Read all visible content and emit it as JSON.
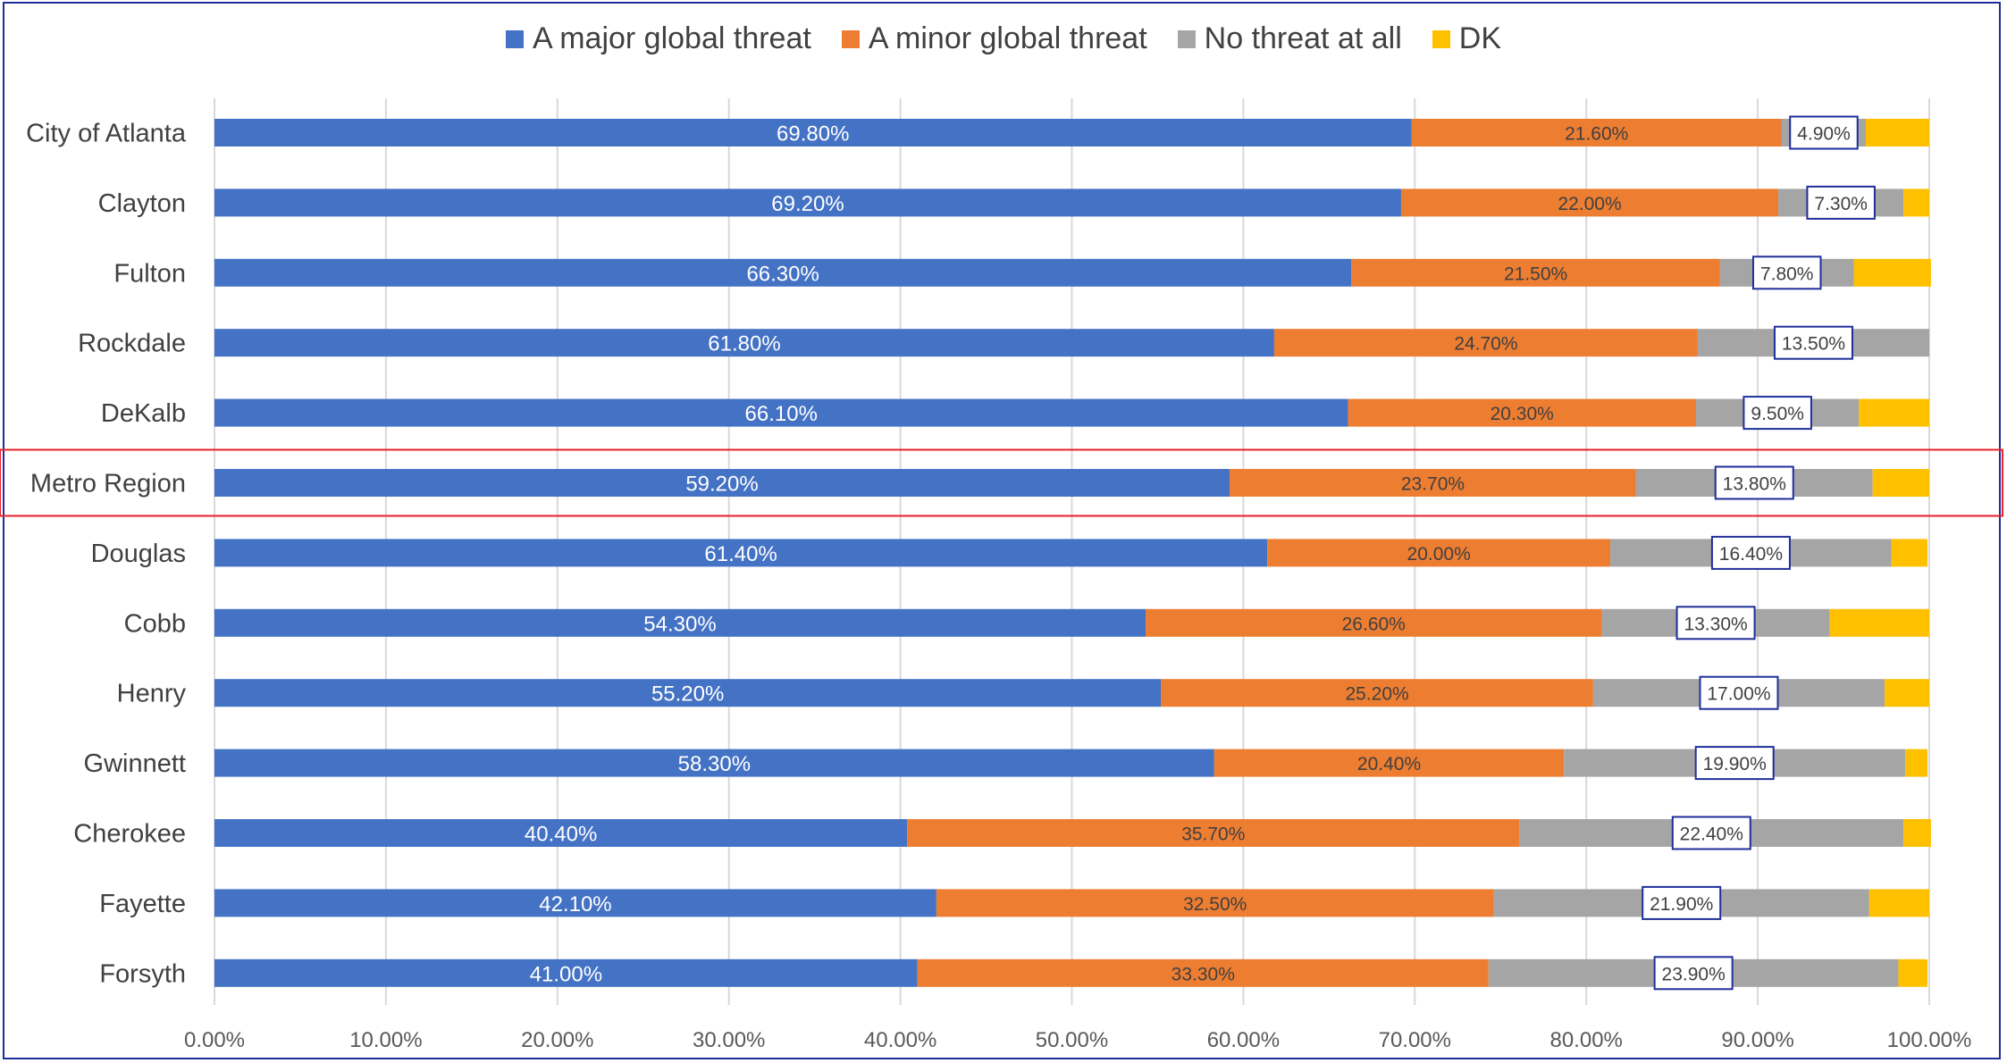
{
  "chart_data": {
    "type": "bar",
    "orientation": "horizontal",
    "stacked": true,
    "categories": [
      "City of Atlanta",
      "Clayton",
      "Fulton",
      "Rockdale",
      "DeKalb",
      "Metro Region",
      "Douglas",
      "Cobb",
      "Henry",
      "Gwinnett",
      "Cherokee",
      "Fayette",
      "Forsyth"
    ],
    "series": [
      {
        "name": "A major global threat",
        "color": "#4472c4",
        "values": [
          69.8,
          69.2,
          66.3,
          61.8,
          66.1,
          59.2,
          61.4,
          54.3,
          55.2,
          58.3,
          40.4,
          42.1,
          41.0
        ],
        "labels": [
          "69.80%",
          "69.20%",
          "66.30%",
          "61.80%",
          "66.10%",
          "59.20%",
          "61.40%",
          "54.30%",
          "55.20%",
          "58.30%",
          "40.40%",
          "42.10%",
          "41.00%"
        ]
      },
      {
        "name": "A minor global threat",
        "color": "#ed7d31",
        "values": [
          21.6,
          22.0,
          21.5,
          24.7,
          20.3,
          23.7,
          20.0,
          26.6,
          25.2,
          20.4,
          35.7,
          32.5,
          33.3
        ],
        "labels": [
          "21.60%",
          "22.00%",
          "21.50%",
          "24.70%",
          "20.30%",
          "23.70%",
          "20.00%",
          "26.60%",
          "25.20%",
          "20.40%",
          "35.70%",
          "32.50%",
          "33.30%"
        ]
      },
      {
        "name": "No threat at all",
        "color": "#a5a5a5",
        "values": [
          4.9,
          7.3,
          7.8,
          13.5,
          9.5,
          13.8,
          16.4,
          13.3,
          17.0,
          19.9,
          22.4,
          21.9,
          23.9
        ],
        "labels": [
          "4.90%",
          "7.30%",
          "7.80%",
          "13.50%",
          "9.50%",
          "13.80%",
          "16.40%",
          "13.30%",
          "17.00%",
          "19.90%",
          "22.40%",
          "21.90%",
          "23.90%"
        ]
      },
      {
        "name": "DK",
        "color": "#ffc000",
        "values": [
          3.7,
          1.5,
          4.5,
          0.0,
          4.1,
          3.3,
          2.1,
          5.8,
          2.6,
          1.3,
          1.6,
          3.5,
          1.7
        ]
      }
    ],
    "xlim": [
      0,
      100
    ],
    "xticks": [
      "0.00%",
      "10.00%",
      "20.00%",
      "30.00%",
      "40.00%",
      "50.00%",
      "60.00%",
      "70.00%",
      "80.00%",
      "90.00%",
      "100.00%"
    ],
    "grid": "vertical",
    "legend_position": "top",
    "highlighted_category": "Metro Region",
    "highlight_color": "#e8202a"
  }
}
